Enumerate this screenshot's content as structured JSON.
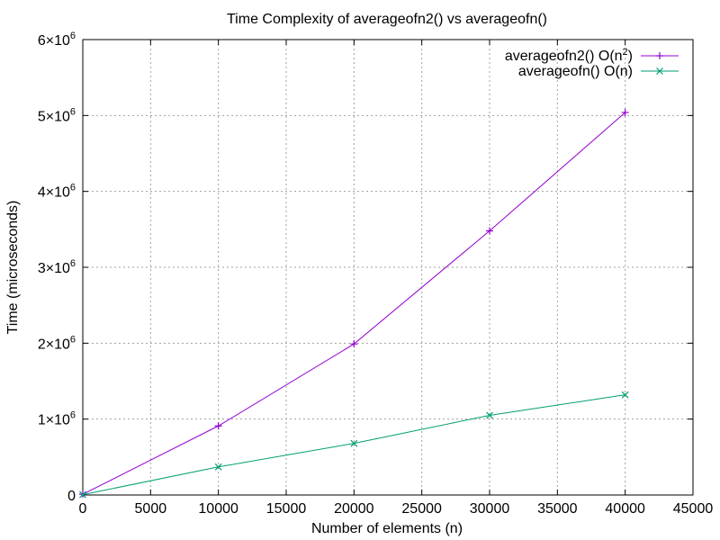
{
  "chart_data": {
    "type": "line",
    "title": "Time Complexity of averageofn2() vs averageofn()",
    "xlabel": "Number of elements (n)",
    "ylabel": "Time (microseconds)",
    "xlim": [
      0,
      45000
    ],
    "ylim": [
      0,
      6000000
    ],
    "x_ticks": [
      0,
      5000,
      10000,
      15000,
      20000,
      25000,
      30000,
      35000,
      40000,
      45000
    ],
    "x_tick_labels": [
      "0",
      "5000",
      "10000",
      "15000",
      "20000",
      "25000",
      "30000",
      "35000",
      "40000",
      "45000"
    ],
    "y_ticks": [
      0,
      1000000,
      2000000,
      3000000,
      4000000,
      5000000,
      6000000
    ],
    "y_tick_labels": [
      {
        "base": "0",
        "exp": ""
      },
      {
        "base": "1×10",
        "exp": "6"
      },
      {
        "base": "2×10",
        "exp": "6"
      },
      {
        "base": "3×10",
        "exp": "6"
      },
      {
        "base": "4×10",
        "exp": "6"
      },
      {
        "base": "5×10",
        "exp": "6"
      },
      {
        "base": "6×10",
        "exp": "6"
      }
    ],
    "grid": true,
    "legend_position": "top-right",
    "series": [
      {
        "name_base": "averageofn2() O(n",
        "name_sup": "2",
        "name_tail": ")",
        "color": "#9400d3",
        "marker": "plus",
        "x": [
          0,
          10000,
          20000,
          30000,
          40000
        ],
        "y": [
          10000,
          910000,
          1990000,
          3480000,
          5040000
        ]
      },
      {
        "name_base": "averageofn() O(n)",
        "name_sup": "",
        "name_tail": "",
        "color": "#009e73",
        "marker": "cross",
        "x": [
          0,
          10000,
          20000,
          30000,
          40000
        ],
        "y": [
          5000,
          370000,
          680000,
          1050000,
          1320000
        ]
      }
    ]
  }
}
